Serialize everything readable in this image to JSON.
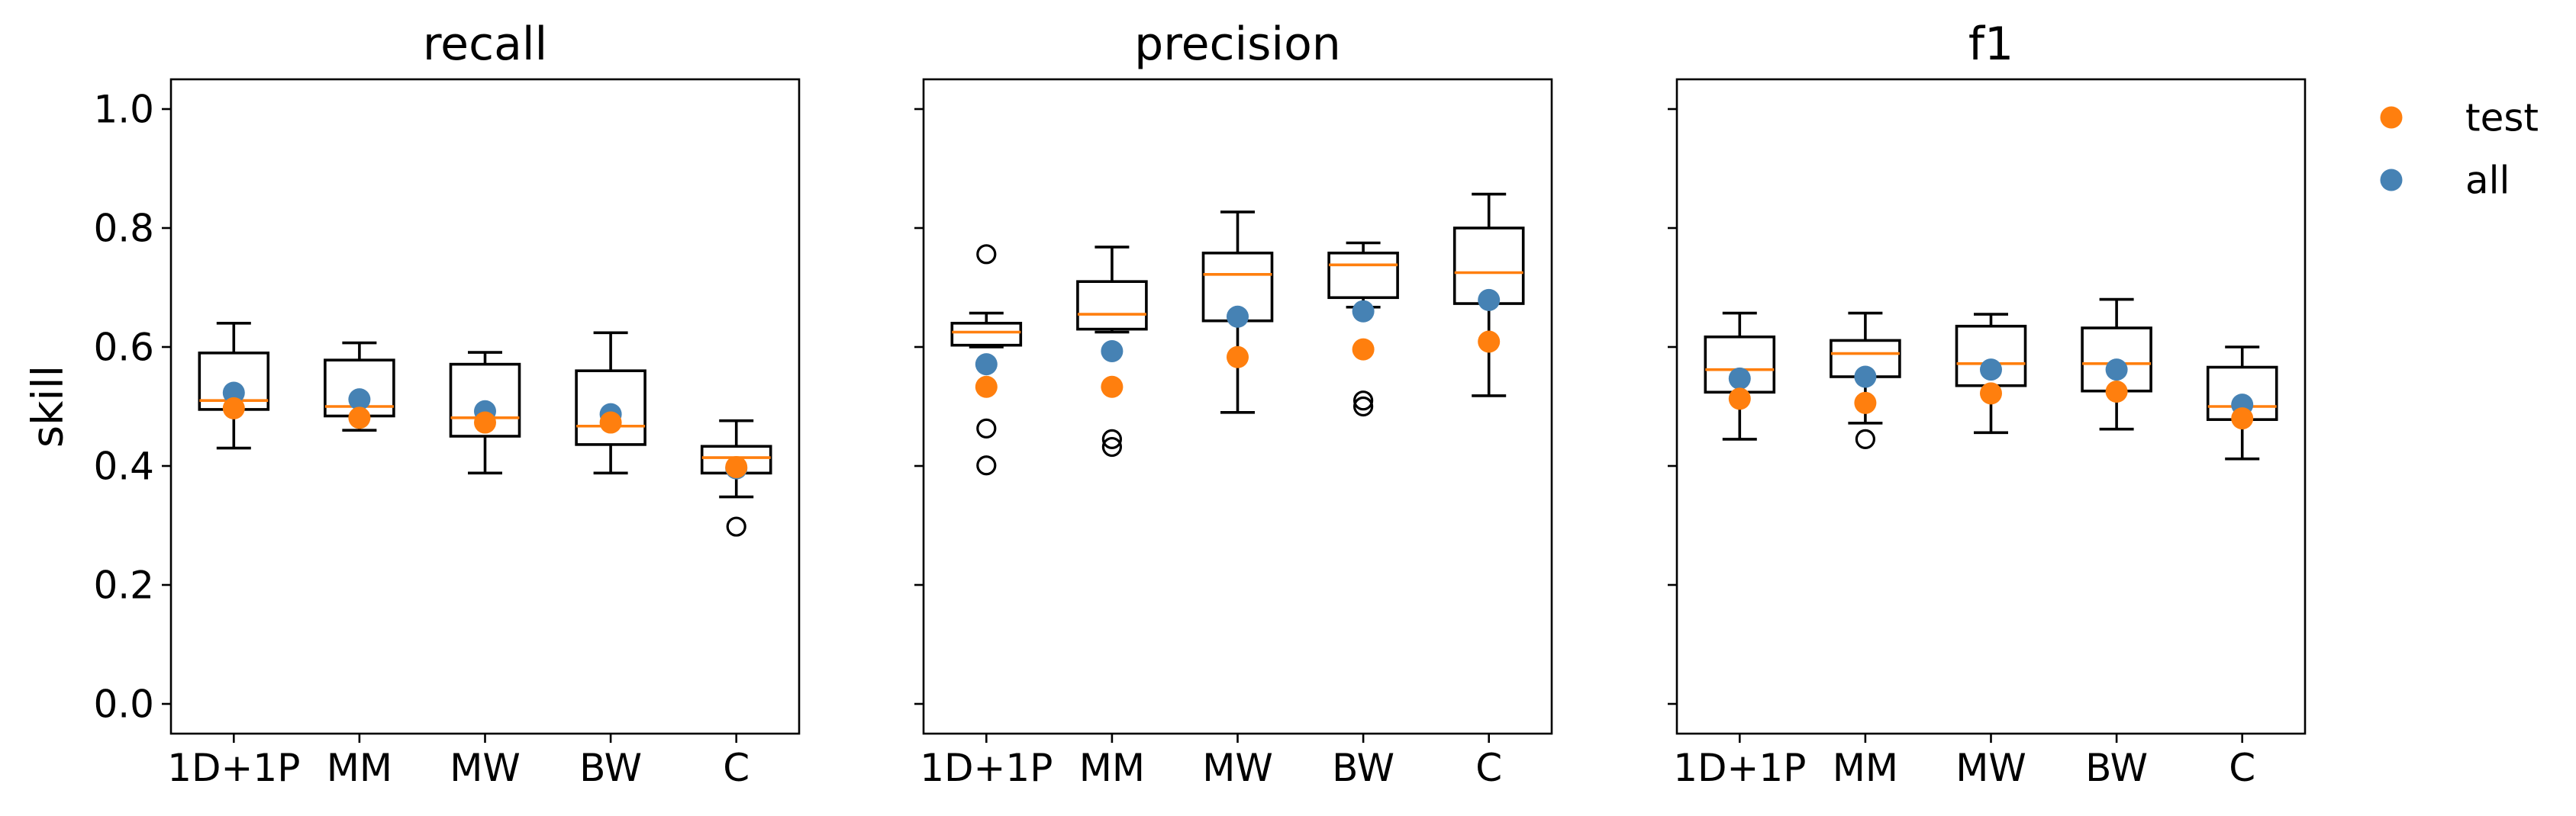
{
  "chart_data": {
    "type": "box",
    "ylabel": "skill",
    "ylim": [
      -0.05,
      1.05
    ],
    "yticks": [
      "0.0",
      "0.2",
      "0.4",
      "0.6",
      "0.8",
      "1.0"
    ],
    "categories": [
      "1D+1P",
      "MM",
      "MW",
      "BW",
      "C"
    ],
    "legend": {
      "placement": "outside-right",
      "entries": [
        {
          "name": "test",
          "color": "#ff7f0e"
        },
        {
          "name": "all",
          "color": "#4682b4"
        }
      ]
    },
    "colors": {
      "box": "#000000",
      "median": "#ff7f0e",
      "test": "#ff7f0e",
      "all": "#4682b4"
    },
    "panels": [
      {
        "title": "recall",
        "boxes": [
          {
            "category": "1D+1P",
            "whisker_low": 0.43,
            "q1": 0.495,
            "median": 0.51,
            "q3": 0.59,
            "whisker_high": 0.64,
            "outliers": [],
            "test": 0.497,
            "all": 0.523
          },
          {
            "category": "MM",
            "whisker_low": 0.46,
            "q1": 0.484,
            "median": 0.5,
            "q3": 0.578,
            "whisker_high": 0.607,
            "outliers": [],
            "test": 0.481,
            "all": 0.512
          },
          {
            "category": "MW",
            "whisker_low": 0.388,
            "q1": 0.45,
            "median": 0.481,
            "q3": 0.571,
            "whisker_high": 0.591,
            "outliers": [],
            "test": 0.473,
            "all": 0.492
          },
          {
            "category": "BW",
            "whisker_low": 0.388,
            "q1": 0.436,
            "median": 0.467,
            "q3": 0.56,
            "whisker_high": 0.624,
            "outliers": [],
            "test": 0.473,
            "all": 0.487
          },
          {
            "category": "C",
            "whisker_low": 0.348,
            "q1": 0.388,
            "median": 0.414,
            "q3": 0.433,
            "whisker_high": 0.476,
            "outliers": [
              0.298
            ],
            "test": 0.398,
            "all": 0.396
          }
        ]
      },
      {
        "title": "precision",
        "boxes": [
          {
            "category": "1D+1P",
            "whisker_low": 0.6,
            "q1": 0.603,
            "median": 0.625,
            "q3": 0.64,
            "whisker_high": 0.657,
            "outliers": [
              0.756,
              0.463,
              0.401
            ],
            "test": 0.533,
            "all": 0.571
          },
          {
            "category": "MM",
            "whisker_low": 0.625,
            "q1": 0.63,
            "median": 0.655,
            "q3": 0.71,
            "whisker_high": 0.768,
            "outliers": [
              0.445,
              0.432
            ],
            "test": 0.533,
            "all": 0.593
          },
          {
            "category": "MW",
            "whisker_low": 0.49,
            "q1": 0.644,
            "median": 0.722,
            "q3": 0.758,
            "whisker_high": 0.827,
            "outliers": [],
            "test": 0.583,
            "all": 0.651
          },
          {
            "category": "BW",
            "whisker_low": 0.667,
            "q1": 0.683,
            "median": 0.738,
            "q3": 0.758,
            "whisker_high": 0.775,
            "outliers": [
              0.51,
              0.5
            ],
            "test": 0.596,
            "all": 0.66
          },
          {
            "category": "C",
            "whisker_low": 0.518,
            "q1": 0.673,
            "median": 0.725,
            "q3": 0.8,
            "whisker_high": 0.857,
            "outliers": [],
            "test": 0.609,
            "all": 0.679
          }
        ]
      },
      {
        "title": "f1",
        "boxes": [
          {
            "category": "1D+1P",
            "whisker_low": 0.445,
            "q1": 0.524,
            "median": 0.562,
            "q3": 0.617,
            "whisker_high": 0.657,
            "outliers": [],
            "test": 0.513,
            "all": 0.547
          },
          {
            "category": "MM",
            "whisker_low": 0.472,
            "q1": 0.55,
            "median": 0.589,
            "q3": 0.611,
            "whisker_high": 0.657,
            "outliers": [
              0.445
            ],
            "test": 0.506,
            "all": 0.55
          },
          {
            "category": "MW",
            "whisker_low": 0.456,
            "q1": 0.535,
            "median": 0.572,
            "q3": 0.635,
            "whisker_high": 0.655,
            "outliers": [],
            "test": 0.522,
            "all": 0.562
          },
          {
            "category": "BW",
            "whisker_low": 0.462,
            "q1": 0.526,
            "median": 0.572,
            "q3": 0.632,
            "whisker_high": 0.68,
            "outliers": [],
            "test": 0.525,
            "all": 0.562
          },
          {
            "category": "C",
            "whisker_low": 0.412,
            "q1": 0.478,
            "median": 0.5,
            "q3": 0.566,
            "whisker_high": 0.6,
            "outliers": [],
            "test": 0.48,
            "all": 0.503
          }
        ]
      }
    ]
  }
}
